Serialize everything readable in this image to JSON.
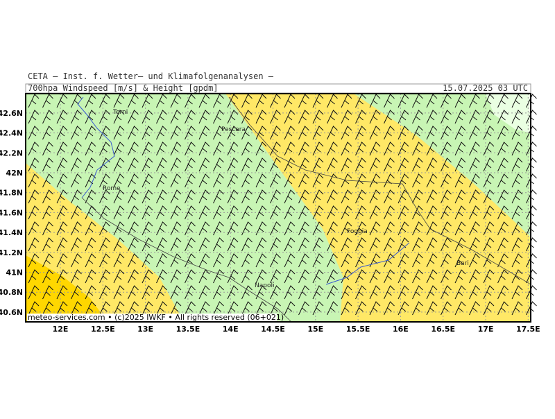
{
  "header": {
    "institute": "CETA – Inst. f. Wetter– und Klimafolgenanalysen –",
    "product": "700hpa Windspeed [m/s] & Height [gpdm]",
    "valid_time": "15.07.2025 03 UTC"
  },
  "map": {
    "lon_ticks": [
      {
        "value": 12,
        "label": "12E"
      },
      {
        "value": 12.5,
        "label": "12.5E"
      },
      {
        "value": 13,
        "label": "13E"
      },
      {
        "value": 13.5,
        "label": "13.5E"
      },
      {
        "value": 14,
        "label": "14E"
      },
      {
        "value": 14.5,
        "label": "14.5E"
      },
      {
        "value": 15,
        "label": "15E"
      },
      {
        "value": 15.5,
        "label": "15.5E"
      },
      {
        "value": 16,
        "label": "16E"
      },
      {
        "value": 16.5,
        "label": "16.5E"
      },
      {
        "value": 17,
        "label": "17E"
      },
      {
        "value": 17.5,
        "label": "17.5E"
      }
    ],
    "lat_ticks": [
      {
        "value": 42.6,
        "label": "42.6N"
      },
      {
        "value": 42.4,
        "label": "42.4N"
      },
      {
        "value": 42.2,
        "label": "42.2N"
      },
      {
        "value": 42,
        "label": "42N"
      },
      {
        "value": 41.8,
        "label": "41.8N"
      },
      {
        "value": 41.6,
        "label": "41.6N"
      },
      {
        "value": 41.4,
        "label": "41.4N"
      },
      {
        "value": 41.2,
        "label": "41.2N"
      },
      {
        "value": 41,
        "label": "41N"
      },
      {
        "value": 40.8,
        "label": "40.8N"
      },
      {
        "value": 40.6,
        "label": "40.6N"
      }
    ],
    "cities": [
      "Terni",
      "Pescara",
      "Rome",
      "Foggia",
      "Bari",
      "Napoli"
    ],
    "copyright": "meteo-services.com • (c)2025 IWKF • All rights reserved (06+021)"
  }
}
